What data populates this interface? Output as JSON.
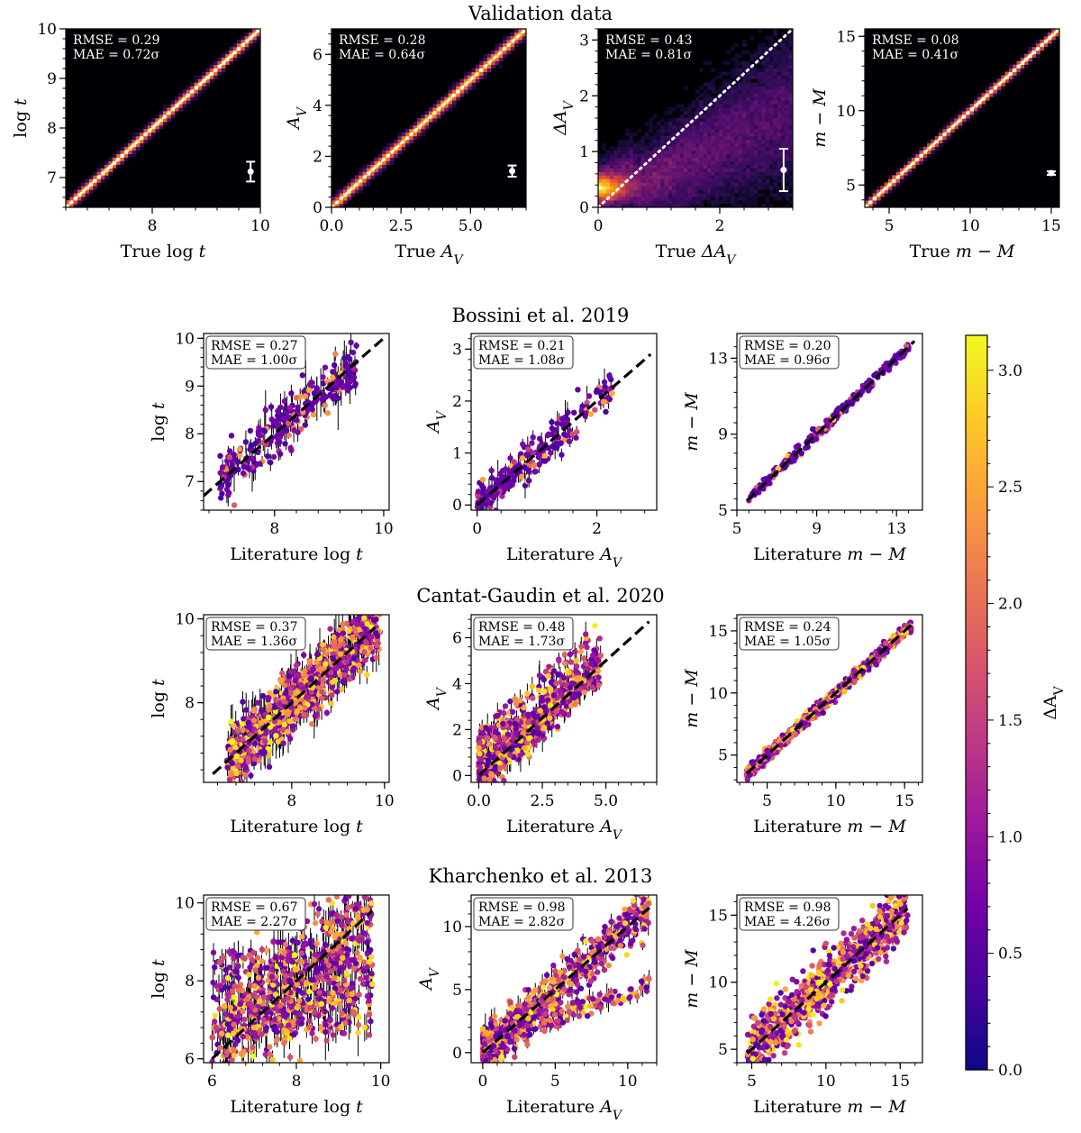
{
  "figure_title": "Validation data",
  "colorbar": {
    "label": "ΔA_V",
    "label_html": "ΔA",
    "label_sub": "V",
    "range": [
      0.0,
      3.15
    ],
    "ticks": [
      "0.0",
      "0.5",
      "1.0",
      "1.5",
      "2.0",
      "2.5",
      "3.0"
    ],
    "colormap": "plasma"
  },
  "colors": {
    "plasma": [
      "#0d0887",
      "#46039f",
      "#7201a8",
      "#9c179e",
      "#bd3786",
      "#d8576b",
      "#ed7953",
      "#fb9f3a",
      "#fdca26",
      "#f0f921"
    ],
    "validation_bg": "#000004",
    "validation_hot": "#fcffa4",
    "dashed_line": "#000000",
    "dotted_line": "#ffffff",
    "errorbar": "#000000"
  },
  "section_titles": [
    "Bossini et al. 2019",
    "Cantat-Gaudin et al. 2020",
    "Kharchenko et al. 2013"
  ],
  "chart_data": [
    {
      "id": "val-logt",
      "type": "heatmap",
      "section": "Validation data",
      "x_range": [
        6.4,
        10
      ],
      "y_range": [
        6.4,
        10
      ],
      "x_ticks": [
        8,
        10
      ],
      "y_ticks": [
        7,
        8,
        9,
        10
      ],
      "xlabel": "True log t",
      "ylabel": "log t",
      "rmse": "RMSE = 0.29",
      "mae": "MAE = 0.72σ",
      "spread": 0.07,
      "errbar": {
        "x": 9.82,
        "y": 7.12,
        "err": 0.2
      }
    },
    {
      "id": "val-av",
      "type": "heatmap",
      "section": "Validation data",
      "x_range": [
        0,
        7
      ],
      "y_range": [
        0,
        7
      ],
      "x_ticks": [
        "0.0",
        "2.5",
        "5.0"
      ],
      "y_ticks": [
        0,
        2,
        4,
        6
      ],
      "xlabel": "True A_V",
      "ylabel": "A_V",
      "rmse": "RMSE = 0.28",
      "mae": "MAE = 0.64σ",
      "spread": 0.09,
      "errbar": {
        "x": 6.5,
        "y": 1.42,
        "err": 0.22
      }
    },
    {
      "id": "val-dav",
      "type": "heatmap",
      "section": "Validation data",
      "x_range": [
        0,
        3.2
      ],
      "y_range": [
        0,
        3.2
      ],
      "x_ticks": [
        0,
        2
      ],
      "y_ticks": [
        0,
        1,
        2,
        3
      ],
      "xlabel": "True ΔA_V",
      "ylabel": "ΔA_V",
      "rmse": "RMSE = 0.43",
      "mae": "MAE = 0.81σ",
      "spread": 0.35,
      "errbar": {
        "x": 3.05,
        "y": 0.67,
        "err": 0.38
      }
    },
    {
      "id": "val-mM",
      "type": "heatmap",
      "section": "Validation data",
      "x_range": [
        3.5,
        15.5
      ],
      "y_range": [
        3.5,
        15.5
      ],
      "x_ticks": [
        5,
        10,
        15
      ],
      "y_ticks": [
        5,
        10,
        15
      ],
      "xlabel": "True m − M",
      "ylabel": "m − M",
      "rmse": "RMSE = 0.08",
      "mae": "MAE = 0.41σ",
      "spread": 0.06,
      "errbar": {
        "x": 15.0,
        "y": 5.8,
        "err": 0.12
      }
    },
    {
      "id": "bos-logt",
      "type": "scatter",
      "section": "Bossini et al. 2019",
      "x_range": [
        6.7,
        10.1
      ],
      "y_range": [
        6.4,
        10.1
      ],
      "x_ticks": [
        8,
        10
      ],
      "y_ticks": [
        7,
        8,
        9,
        10
      ],
      "xlabel": "Literature log t",
      "ylabel": "log t",
      "rmse": "RMSE = 0.27",
      "mae": "MAE = 1.00σ",
      "line": [
        6.7,
        10
      ],
      "n_points": 260,
      "x_data_range": [
        7.0,
        9.5
      ],
      "scatter_sd": 0.28,
      "err_sd": 0.2,
      "color_profile": "low"
    },
    {
      "id": "bos-av",
      "type": "scatter",
      "section": "Bossini et al. 2019",
      "x_range": [
        -0.1,
        3.0
      ],
      "y_range": [
        -0.1,
        3.3
      ],
      "x_ticks": [
        0,
        2
      ],
      "y_ticks": [
        0,
        1,
        2,
        3
      ],
      "xlabel": "Literature A_V",
      "ylabel": "A_V",
      "rmse": "RMSE = 0.21",
      "mae": "MAE = 1.08σ",
      "line": [
        0,
        2.9
      ],
      "n_points": 260,
      "x_data_range": [
        0,
        2.3
      ],
      "scatter_sd": 0.18,
      "err_sd": 0.12,
      "color_profile": "low"
    },
    {
      "id": "bos-mM",
      "type": "scatter",
      "section": "Bossini et al. 2019",
      "x_range": [
        5,
        14.3
      ],
      "y_range": [
        5,
        14.3
      ],
      "x_ticks": [
        5,
        9,
        13
      ],
      "y_ticks": [
        5,
        9,
        13
      ],
      "xlabel": "Literature m − M",
      "ylabel": "m − M",
      "rmse": "RMSE = 0.20",
      "mae": "MAE = 0.96σ",
      "line": [
        5.5,
        13.9
      ],
      "n_points": 260,
      "x_data_range": [
        5.6,
        13.6
      ],
      "scatter_sd": 0.15,
      "err_sd": 0.05,
      "color_profile": "low"
    },
    {
      "id": "cg-logt",
      "type": "scatter",
      "section": "Cantat-Gaudin et al. 2020",
      "x_range": [
        6.1,
        10.1
      ],
      "y_range": [
        6.1,
        10.1
      ],
      "x_ticks": [
        8,
        10
      ],
      "y_ticks": [
        8,
        10
      ],
      "xlabel": "Literature log t",
      "ylabel": "log t",
      "rmse": "RMSE = 0.37",
      "mae": "MAE = 1.36σ",
      "line": [
        6.3,
        9.8
      ],
      "n_points": 900,
      "x_data_range": [
        6.6,
        9.9
      ],
      "scatter_sd": 0.36,
      "err_sd": 0.25,
      "color_profile": "mixed"
    },
    {
      "id": "cg-av",
      "type": "scatter",
      "section": "Cantat-Gaudin et al. 2020",
      "x_range": [
        -0.3,
        7.0
      ],
      "y_range": [
        -0.3,
        7.0
      ],
      "x_ticks": [
        "0.0",
        "2.5",
        "5.0"
      ],
      "y_ticks": [
        0,
        2,
        4,
        6
      ],
      "xlabel": "Literature A_V",
      "ylabel": "A_V",
      "rmse": "RMSE = 0.48",
      "mae": "MAE = 1.73σ",
      "line": [
        0,
        6.7
      ],
      "n_points": 900,
      "x_data_range": [
        0,
        4.8
      ],
      "scatter_sd": 0.42,
      "err_sd": 0.3,
      "color_profile": "mixed"
    },
    {
      "id": "cg-mM",
      "type": "scatter",
      "section": "Cantat-Gaudin et al. 2020",
      "x_range": [
        2.8,
        16.3
      ],
      "y_range": [
        2.8,
        16.3
      ],
      "x_ticks": [
        5,
        10,
        15
      ],
      "y_ticks": [
        5,
        10,
        15
      ],
      "xlabel": "Literature m − M",
      "ylabel": "m − M",
      "rmse": "RMSE = 0.24",
      "mae": "MAE = 1.05σ",
      "line": [
        3.5,
        15.5
      ],
      "n_points": 900,
      "x_data_range": [
        3.5,
        15.5
      ],
      "scatter_sd": 0.22,
      "err_sd": 0.08,
      "color_profile": "mixed"
    },
    {
      "id": "kh-logt",
      "type": "scatter",
      "section": "Kharchenko et al. 2013",
      "x_range": [
        5.8,
        10.2
      ],
      "y_range": [
        5.9,
        10.2
      ],
      "x_ticks": [
        6,
        8,
        10
      ],
      "y_ticks": [
        6,
        8,
        10
      ],
      "xlabel": "Literature log t",
      "ylabel": "log t",
      "rmse": "RMSE = 0.67",
      "mae": "MAE = 2.27σ",
      "line": [
        6.0,
        9.8
      ],
      "n_points": 900,
      "x_data_range": [
        6.0,
        9.8
      ],
      "scatter_sd": 0.8,
      "err_sd": 0.3,
      "color_profile": "mixed"
    },
    {
      "id": "kh-av",
      "type": "scatter",
      "section": "Kharchenko et al. 2013",
      "x_range": [
        -0.8,
        12.0
      ],
      "y_range": [
        -0.8,
        12.5
      ],
      "x_ticks": [
        0,
        5,
        10
      ],
      "y_ticks": [
        0,
        5,
        10
      ],
      "xlabel": "Literature A_V",
      "ylabel": "A_V",
      "rmse": "RMSE = 0.98",
      "mae": "MAE = 2.82σ",
      "line": [
        0,
        11.5
      ],
      "n_points": 900,
      "x_data_range": [
        0,
        11.5
      ],
      "scatter_sd": 0.9,
      "err_sd": 0.4,
      "color_profile": "mixed"
    },
    {
      "id": "kh-mM",
      "type": "scatter",
      "section": "Kharchenko et al. 2013",
      "x_range": [
        4.0,
        16.5
      ],
      "y_range": [
        4.0,
        16.5
      ],
      "x_ticks": [
        5,
        10,
        15
      ],
      "y_ticks": [
        5,
        10,
        15
      ],
      "xlabel": "Literature m − M",
      "ylabel": "m − M",
      "rmse": "RMSE = 0.98",
      "mae": "MAE = 4.26σ",
      "line": [
        4.7,
        15.5
      ],
      "n_points": 900,
      "x_data_range": [
        4.7,
        15.5
      ],
      "scatter_sd": 1.0,
      "err_sd": 0.1,
      "color_profile": "mixed"
    }
  ]
}
